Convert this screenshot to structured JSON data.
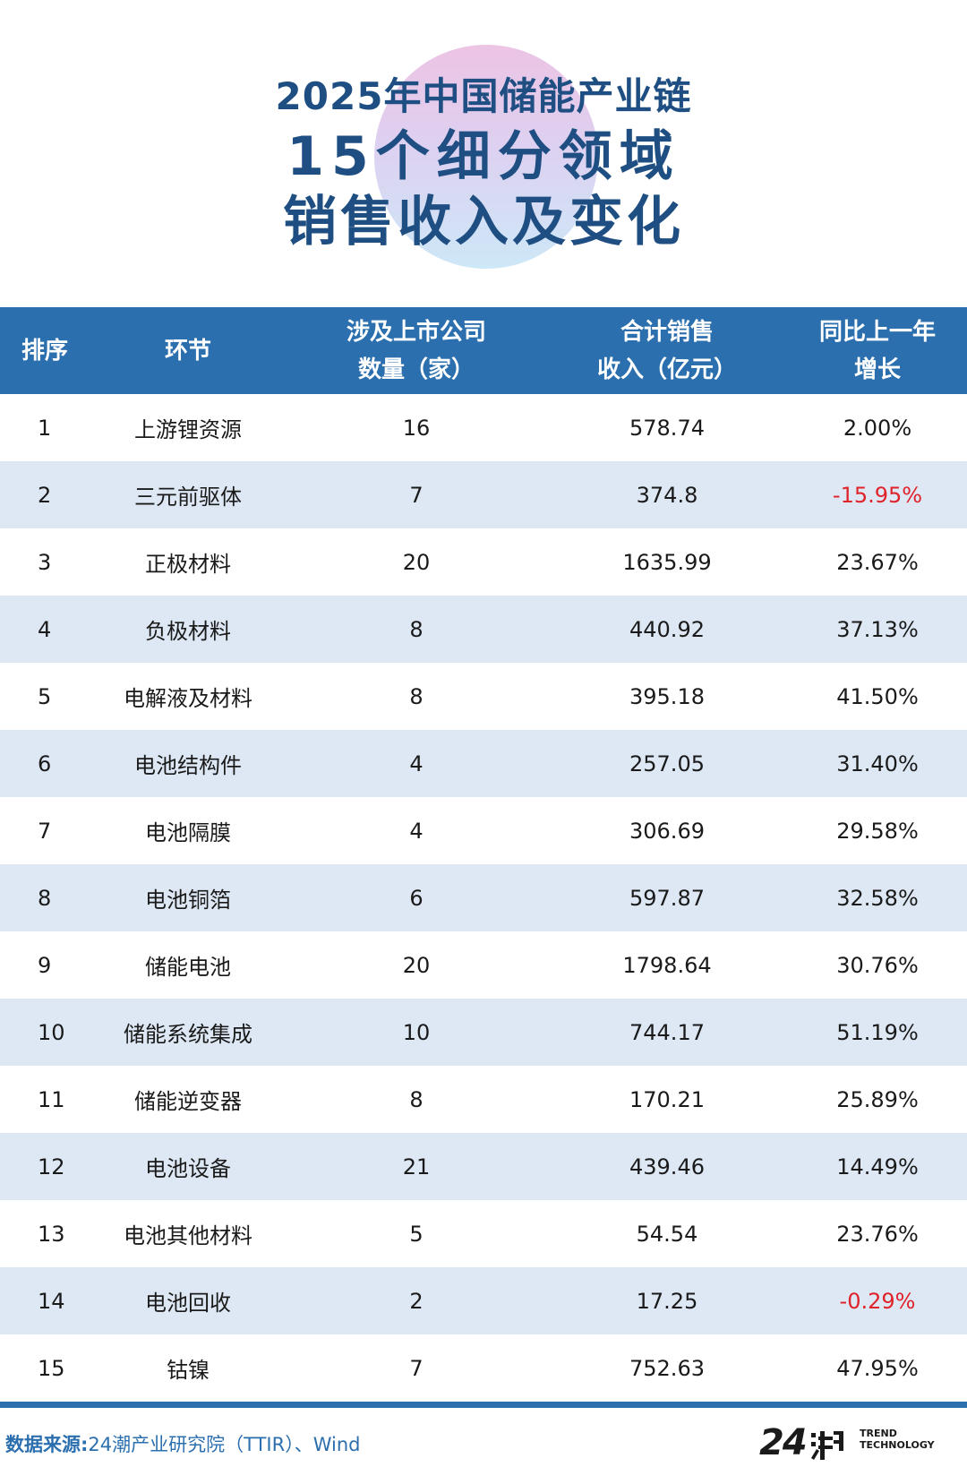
{
  "title": {
    "line1": "2025年中国储能产业链",
    "line2": "15个细分领域",
    "line3": "销售收入及变化"
  },
  "table": {
    "headers": {
      "rank": "排序",
      "segment": "环节",
      "companies_l1": "涉及上市公司",
      "companies_l2": "数量（家）",
      "revenue_l1": "合计销售",
      "revenue_l2": "收入（亿元）",
      "growth_l1": "同比上一年",
      "growth_l2": "增长"
    },
    "rows": [
      {
        "rank": "1",
        "segment": "上游锂资源",
        "companies": "16",
        "revenue": "578.74",
        "growth": "2.00%",
        "negative": false
      },
      {
        "rank": "2",
        "segment": "三元前驱体",
        "companies": "7",
        "revenue": "374.8",
        "growth": "-15.95%",
        "negative": true
      },
      {
        "rank": "3",
        "segment": "正极材料",
        "companies": "20",
        "revenue": "1635.99",
        "growth": "23.67%",
        "negative": false
      },
      {
        "rank": "4",
        "segment": "负极材料",
        "companies": "8",
        "revenue": "440.92",
        "growth": "37.13%",
        "negative": false
      },
      {
        "rank": "5",
        "segment": "电解液及材料",
        "companies": "8",
        "revenue": "395.18",
        "growth": "41.50%",
        "negative": false
      },
      {
        "rank": "6",
        "segment": "电池结构件",
        "companies": "4",
        "revenue": "257.05",
        "growth": "31.40%",
        "negative": false
      },
      {
        "rank": "7",
        "segment": "电池隔膜",
        "companies": "4",
        "revenue": "306.69",
        "growth": "29.58%",
        "negative": false
      },
      {
        "rank": "8",
        "segment": "电池铜箔",
        "companies": "6",
        "revenue": "597.87",
        "growth": "32.58%",
        "negative": false
      },
      {
        "rank": "9",
        "segment": "储能电池",
        "companies": "20",
        "revenue": "1798.64",
        "growth": "30.76%",
        "negative": false
      },
      {
        "rank": "10",
        "segment": "储能系统集成",
        "companies": "10",
        "revenue": "744.17",
        "growth": "51.19%",
        "negative": false
      },
      {
        "rank": "11",
        "segment": "储能逆变器",
        "companies": "8",
        "revenue": "170.21",
        "growth": "25.89%",
        "negative": false
      },
      {
        "rank": "12",
        "segment": "电池设备",
        "companies": "21",
        "revenue": "439.46",
        "growth": "14.49%",
        "negative": false
      },
      {
        "rank": "13",
        "segment": "电池其他材料",
        "companies": "5",
        "revenue": "54.54",
        "growth": "23.76%",
        "negative": false
      },
      {
        "rank": "14",
        "segment": "电池回收",
        "companies": "2",
        "revenue": "17.25",
        "growth": "-0.29%",
        "negative": true
      },
      {
        "rank": "15",
        "segment": "钴镍",
        "companies": "7",
        "revenue": "752.63",
        "growth": "47.95%",
        "negative": false
      }
    ]
  },
  "footer": {
    "source_label": "数据来源:",
    "source_text": "24潮产业研究院（TTIR）、Wind",
    "logo_number": "24",
    "logo_word1": "TREND",
    "logo_word2": "TECHNOLOGY"
  },
  "colors": {
    "header_bg": "#2b6fae",
    "title": "#1f4f82",
    "row_alt": "#dde8f4",
    "negative": "#e0222a"
  }
}
